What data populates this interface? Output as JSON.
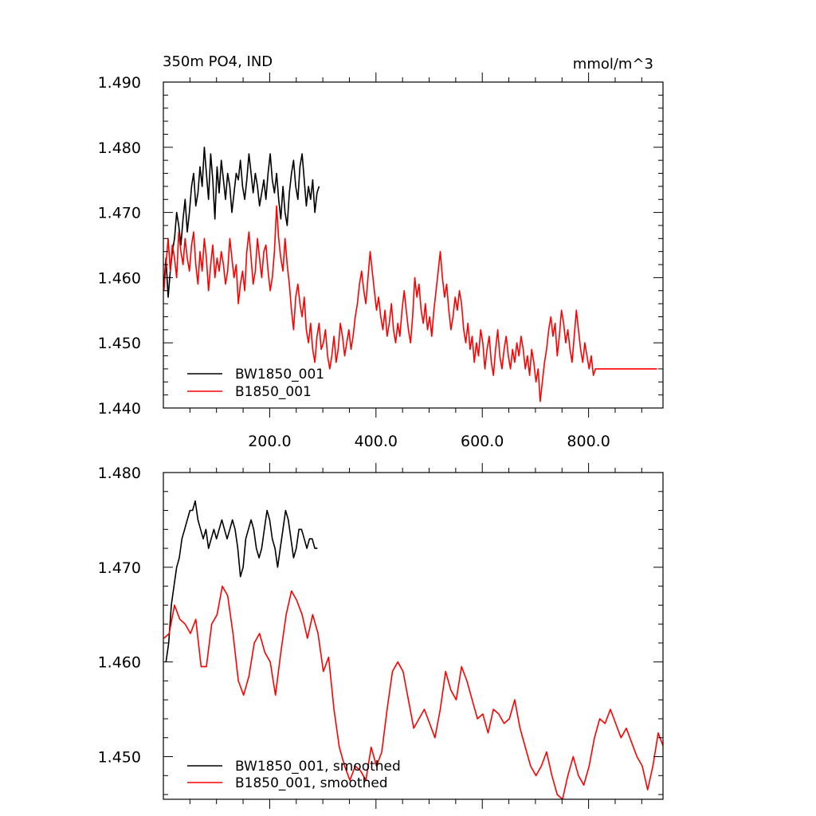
{
  "chart_data": [
    {
      "type": "line",
      "title_left": "350m PO4, IND",
      "title_right": "mmol/m^3",
      "xlabel": "",
      "ylabel": "",
      "xlim": [
        0,
        940
      ],
      "ylim": [
        1.44,
        1.49
      ],
      "xticks": [
        200,
        400,
        600,
        800
      ],
      "xtick_labels": [
        "200.0",
        "400.0",
        "600.0",
        "800.0"
      ],
      "yticks": [
        1.44,
        1.45,
        1.46,
        1.47,
        1.48,
        1.49
      ],
      "ytick_labels": [
        "1.440",
        "1.450",
        "1.460",
        "1.470",
        "1.480",
        "1.490"
      ],
      "legend_position": "bottom-left",
      "series": [
        {
          "name": "BW1850_001",
          "color": "#000000",
          "x_start": 1,
          "x_step": 4,
          "values": [
            1.459,
            1.463,
            1.457,
            1.461,
            1.464,
            1.466,
            1.47,
            1.468,
            1.465,
            1.469,
            1.472,
            1.467,
            1.47,
            1.474,
            1.476,
            1.471,
            1.473,
            1.477,
            1.474,
            1.48,
            1.476,
            1.472,
            1.479,
            1.475,
            1.469,
            1.477,
            1.473,
            1.478,
            1.475,
            1.472,
            1.476,
            1.474,
            1.47,
            1.473,
            1.476,
            1.475,
            1.478,
            1.474,
            1.472,
            1.475,
            1.479,
            1.476,
            1.473,
            1.476,
            1.474,
            1.471,
            1.473,
            1.475,
            1.472,
            1.476,
            1.479,
            1.475,
            1.473,
            1.476,
            1.472,
            1.469,
            1.474,
            1.47,
            1.468,
            1.473,
            1.476,
            1.478,
            1.474,
            1.472,
            1.477,
            1.479,
            1.475,
            1.471,
            1.474,
            1.472,
            1.475,
            1.47,
            1.473,
            1.474
          ]
        },
        {
          "name": "B1850_001",
          "color": "#ff0000",
          "x_start": 1,
          "x_step": 4,
          "values": [
            1.458,
            1.462,
            1.466,
            1.461,
            1.465,
            1.463,
            1.46,
            1.467,
            1.464,
            1.462,
            1.466,
            1.463,
            1.461,
            1.465,
            1.467,
            1.462,
            1.459,
            1.464,
            1.461,
            1.466,
            1.463,
            1.458,
            1.462,
            1.465,
            1.46,
            1.463,
            1.461,
            1.464,
            1.462,
            1.459,
            1.461,
            1.466,
            1.463,
            1.46,
            1.462,
            1.456,
            1.459,
            1.461,
            1.458,
            1.464,
            1.467,
            1.463,
            1.459,
            1.461,
            1.466,
            1.463,
            1.46,
            1.464,
            1.465,
            1.461,
            1.458,
            1.46,
            1.464,
            1.471,
            1.466,
            1.463,
            1.461,
            1.466,
            1.462,
            1.459,
            1.455,
            1.452,
            1.457,
            1.459,
            1.456,
            1.454,
            1.457,
            1.452,
            1.45,
            1.453,
            1.449,
            1.447,
            1.451,
            1.453,
            1.449,
            1.45,
            1.452,
            1.448,
            1.446,
            1.448,
            1.451,
            1.447,
            1.449,
            1.453,
            1.451,
            1.448,
            1.45,
            1.452,
            1.449,
            1.451,
            1.454,
            1.456,
            1.459,
            1.461,
            1.458,
            1.456,
            1.46,
            1.464,
            1.461,
            1.458,
            1.455,
            1.457,
            1.454,
            1.452,
            1.455,
            1.451,
            1.453,
            1.456,
            1.452,
            1.45,
            1.453,
            1.451,
            1.455,
            1.458,
            1.455,
            1.452,
            1.45,
            1.454,
            1.46,
            1.457,
            1.459,
            1.455,
            1.453,
            1.456,
            1.452,
            1.454,
            1.451,
            1.455,
            1.458,
            1.461,
            1.464,
            1.46,
            1.457,
            1.459,
            1.455,
            1.452,
            1.454,
            1.457,
            1.455,
            1.458,
            1.456,
            1.452,
            1.45,
            1.453,
            1.449,
            1.451,
            1.447,
            1.45,
            1.448,
            1.452,
            1.45,
            1.446,
            1.449,
            1.451,
            1.447,
            1.445,
            1.449,
            1.452,
            1.448,
            1.446,
            1.449,
            1.451,
            1.448,
            1.446,
            1.449,
            1.447,
            1.45,
            1.448,
            1.451,
            1.449,
            1.446,
            1.448,
            1.445,
            1.449,
            1.447,
            1.444,
            1.446,
            1.441,
            1.444,
            1.447,
            1.449,
            1.452,
            1.454,
            1.451,
            1.453,
            1.448,
            1.451,
            1.455,
            1.453,
            1.45,
            1.452,
            1.449,
            1.447,
            1.451,
            1.455,
            1.452,
            1.449,
            1.447,
            1.45,
            1.448,
            1.446,
            1.448,
            1.445,
            1.446,
            1.446,
            1.446,
            1.446,
            1.446,
            1.446,
            1.446,
            1.446,
            1.446,
            1.446,
            1.446,
            1.446,
            1.446,
            1.446,
            1.446,
            1.446,
            1.446,
            1.446,
            1.446,
            1.446,
            1.446,
            1.446,
            1.446,
            1.446,
            1.446,
            1.446,
            1.446,
            1.446,
            1.446,
            1.446
          ]
        }
      ]
    },
    {
      "type": "line",
      "title_left": "",
      "title_right": "",
      "xlabel": "",
      "ylabel": "",
      "xlim": [
        0,
        940
      ],
      "ylim": [
        1.4455,
        1.48
      ],
      "xticks": [
        200,
        400,
        600,
        800
      ],
      "xtick_labels": [],
      "yticks": [
        1.45,
        1.46,
        1.47,
        1.48
      ],
      "ytick_labels": [
        "1.450",
        "1.460",
        "1.470",
        "1.480"
      ],
      "legend_position": "bottom-left",
      "series": [
        {
          "name": "BW1850_001, smoothed",
          "color": "#000000",
          "x": [
            5,
            10,
            15,
            20,
            25,
            30,
            35,
            40,
            45,
            50,
            55,
            60,
            65,
            70,
            75,
            80,
            85,
            90,
            95,
            100,
            105,
            110,
            115,
            120,
            125,
            130,
            135,
            140,
            145,
            150,
            155,
            160,
            165,
            170,
            175,
            180,
            185,
            190,
            195,
            200,
            205,
            210,
            215,
            220,
            225,
            230,
            235,
            240,
            245,
            250,
            255,
            260,
            265,
            270,
            275,
            280,
            285,
            290
          ],
          "values": [
            1.46,
            1.462,
            1.466,
            1.468,
            1.47,
            1.471,
            1.473,
            1.474,
            1.475,
            1.476,
            1.476,
            1.477,
            1.475,
            1.474,
            1.473,
            1.474,
            1.472,
            1.473,
            1.474,
            1.473,
            1.474,
            1.475,
            1.474,
            1.473,
            1.474,
            1.475,
            1.474,
            1.472,
            1.469,
            1.47,
            1.473,
            1.474,
            1.475,
            1.474,
            1.472,
            1.471,
            1.472,
            1.474,
            1.476,
            1.475,
            1.473,
            1.472,
            1.47,
            1.472,
            1.474,
            1.476,
            1.475,
            1.473,
            1.471,
            1.472,
            1.474,
            1.474,
            1.473,
            1.472,
            1.473,
            1.473,
            1.472,
            1.472
          ]
        },
        {
          "name": "B1850_001, smoothed",
          "color": "#ff0000",
          "x_start": 1,
          "x_step": 10,
          "values": [
            1.4625,
            1.463,
            1.466,
            1.4645,
            1.464,
            1.463,
            1.4645,
            1.4595,
            1.4595,
            1.464,
            1.465,
            1.468,
            1.467,
            1.463,
            1.458,
            1.4565,
            1.4585,
            1.462,
            1.463,
            1.461,
            1.46,
            1.4565,
            1.461,
            1.465,
            1.4675,
            1.4665,
            1.465,
            1.4625,
            1.465,
            1.463,
            1.459,
            1.4605,
            1.455,
            1.451,
            1.449,
            1.4475,
            1.449,
            1.4485,
            1.4475,
            1.451,
            1.449,
            1.4505,
            1.455,
            1.459,
            1.46,
            1.459,
            1.456,
            1.453,
            1.454,
            1.455,
            1.4535,
            1.452,
            1.455,
            1.459,
            1.457,
            1.456,
            1.4595,
            1.458,
            1.456,
            1.454,
            1.4545,
            1.4525,
            1.455,
            1.4545,
            1.4535,
            1.454,
            1.456,
            1.453,
            1.451,
            1.449,
            1.448,
            1.449,
            1.4505,
            1.448,
            1.446,
            1.4455,
            1.448,
            1.45,
            1.448,
            1.447,
            1.449,
            1.452,
            1.454,
            1.4535,
            1.455,
            1.4535,
            1.452,
            1.453,
            1.4515,
            1.45,
            1.449,
            1.4465,
            1.449,
            1.4525,
            1.451
          ]
        }
      ]
    }
  ]
}
